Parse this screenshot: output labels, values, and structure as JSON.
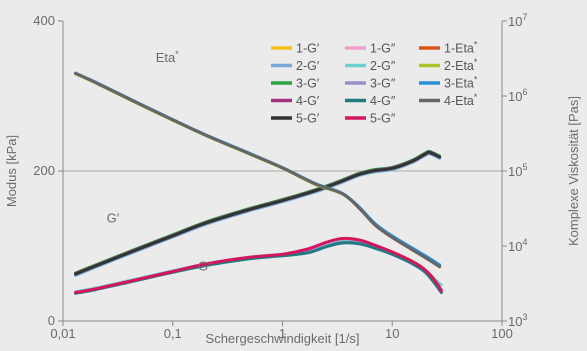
{
  "chart_data": {
    "type": "line",
    "xlabel": "Schergeschwindigkeit [1/s]",
    "ylabel_left": "Modus [kPa]",
    "ylabel_right": "Komplexe Viskosität [Pas]",
    "x_scale": "log",
    "xlim": [
      0.01,
      100
    ],
    "x_ticks": [
      {
        "v": 0.01,
        "label": "0,01"
      },
      {
        "v": 0.1,
        "label": "0,1"
      },
      {
        "v": 1,
        "label": "1"
      },
      {
        "v": 10,
        "label": "10"
      },
      {
        "v": 100,
        "label": "100"
      }
    ],
    "ylim_left": [
      0,
      400
    ],
    "y_ticks_left": [
      {
        "v": 0,
        "label": "0"
      },
      {
        "v": 200,
        "label": "200"
      },
      {
        "v": 400,
        "label": "400"
      }
    ],
    "y_scale_right": "log",
    "ylim_right": [
      1000,
      10000000
    ],
    "y_ticks_right": [
      {
        "v": 1000,
        "base": "10",
        "exp": "3"
      },
      {
        "v": 10000,
        "base": "10",
        "exp": "4"
      },
      {
        "v": 100000,
        "base": "10",
        "exp": "5"
      },
      {
        "v": 1000000,
        "base": "10",
        "exp": "6"
      },
      {
        "v": 10000000,
        "base": "10",
        "exp": "7"
      }
    ],
    "grid": "horizontal line at 200",
    "legend_position": "top-right",
    "annotations": [
      {
        "text": "Eta*",
        "x": 0.07,
        "y": 352
      },
      {
        "text": "G′",
        "x": 0.025,
        "y": 138
      },
      {
        "text": "G″",
        "x": 0.17,
        "y": 74
      }
    ],
    "series": [
      {
        "name": "1-G′",
        "group": "G′",
        "color": "#f2c21b",
        "axis": "left",
        "x": [
          0.013,
          0.02,
          0.05,
          0.1,
          0.2,
          0.5,
          1,
          1.7,
          2.5,
          3.5,
          5,
          7,
          10,
          15,
          20,
          22,
          27
        ],
        "y": [
          62,
          73,
          96,
          113,
          130,
          148,
          160,
          170,
          178,
          186,
          195,
          200,
          203,
          212,
          222,
          224,
          218
        ]
      },
      {
        "name": "2-G′",
        "group": "G′",
        "color": "#7aa8d6",
        "axis": "left",
        "x": [
          0.013,
          0.02,
          0.05,
          0.1,
          0.2,
          0.5,
          1,
          1.7,
          2.5,
          3.5,
          5,
          7,
          10,
          15,
          20,
          22,
          27
        ],
        "y": [
          61,
          72,
          95,
          112,
          129,
          147,
          159,
          169,
          177,
          185,
          194,
          199,
          202,
          211,
          221,
          223,
          217
        ]
      },
      {
        "name": "3-G′",
        "group": "G′",
        "color": "#2ea043",
        "axis": "left",
        "x": [
          0.013,
          0.02,
          0.05,
          0.1,
          0.2,
          0.5,
          1,
          1.7,
          2.5,
          3.5,
          5,
          7,
          10,
          15,
          20,
          22,
          27
        ],
        "y": [
          64,
          75,
          98,
          115,
          132,
          150,
          162,
          172,
          180,
          188,
          197,
          202,
          205,
          214,
          224,
          226,
          220
        ]
      },
      {
        "name": "4-G′",
        "group": "G′",
        "color": "#a0317c",
        "axis": "left",
        "x": [
          0.013,
          0.02,
          0.05,
          0.1,
          0.2,
          0.5,
          1,
          1.7,
          2.5,
          3.5,
          5,
          7,
          10,
          15,
          20,
          22,
          27
        ],
        "y": [
          63,
          74,
          97,
          114,
          131,
          149,
          161,
          171,
          179,
          187,
          196,
          201,
          204,
          213,
          223,
          225,
          219
        ]
      },
      {
        "name": "5-G′",
        "group": "G′",
        "color": "#333333",
        "axis": "left",
        "x": [
          0.013,
          0.02,
          0.05,
          0.1,
          0.2,
          0.5,
          1,
          1.7,
          2.5,
          3.5,
          5,
          7,
          10,
          15,
          20,
          22,
          27
        ],
        "y": [
          62.5,
          73.5,
          96.5,
          113.5,
          130.5,
          148.5,
          160.5,
          170.5,
          178.5,
          186.5,
          195.5,
          200.5,
          203.5,
          212.5,
          222.5,
          224.5,
          218.5
        ]
      },
      {
        "name": "1-G″",
        "group": "G″",
        "color": "#f29ccf",
        "axis": "left",
        "x": [
          0.013,
          0.02,
          0.05,
          0.1,
          0.2,
          0.5,
          1,
          1.7,
          2.5,
          3.5,
          5,
          7,
          10,
          15,
          20,
          25,
          28
        ],
        "y": [
          38,
          43,
          56,
          66,
          75,
          84,
          88,
          92,
          100,
          105,
          104,
          98,
          90,
          78,
          66,
          50,
          42
        ]
      },
      {
        "name": "2-G″",
        "group": "G″",
        "color": "#6fd0d0",
        "axis": "left",
        "x": [
          0.013,
          0.02,
          0.05,
          0.1,
          0.2,
          0.5,
          1,
          1.7,
          2.5,
          3.5,
          5,
          7,
          10,
          15,
          20,
          25,
          28
        ],
        "y": [
          39,
          44,
          57,
          67,
          76,
          85,
          89,
          93,
          101,
          106,
          105,
          99,
          91,
          79,
          68,
          54,
          48
        ]
      },
      {
        "name": "3-G″",
        "group": "G″",
        "color": "#9b8ec9",
        "axis": "left",
        "x": [
          0.013,
          0.02,
          0.05,
          0.1,
          0.2,
          0.5,
          1,
          1.7,
          2.5,
          3.5,
          5,
          7,
          10,
          15,
          20,
          25,
          28
        ],
        "y": [
          38,
          43,
          56,
          66,
          75,
          84,
          88,
          92,
          100,
          105,
          104,
          98,
          90,
          78,
          66,
          50,
          42
        ]
      },
      {
        "name": "4-G″",
        "group": "G″",
        "color": "#1f7a82",
        "axis": "left",
        "x": [
          0.013,
          0.02,
          0.05,
          0.1,
          0.2,
          0.5,
          1,
          1.7,
          2.5,
          3.5,
          5,
          7,
          10,
          15,
          20,
          25,
          28
        ],
        "y": [
          37,
          42,
          55,
          65,
          74,
          83,
          87,
          91,
          99,
          104,
          103,
          97,
          89,
          77,
          65,
          48,
          38
        ]
      },
      {
        "name": "5-G″",
        "group": "G″",
        "color": "#d6155c",
        "axis": "left",
        "x": [
          0.013,
          0.02,
          0.05,
          0.1,
          0.2,
          0.5,
          1,
          1.7,
          2.5,
          3.5,
          5,
          7,
          10,
          15,
          20,
          25,
          28
        ],
        "y": [
          38,
          43,
          56,
          66,
          76,
          85,
          89,
          96,
          105,
          110,
          108,
          101,
          92,
          80,
          68,
          52,
          40
        ]
      },
      {
        "name": "1-Eta*",
        "group": "Eta*",
        "color": "#e0521c",
        "axis": "right",
        "x": [
          0.013,
          0.02,
          0.05,
          0.1,
          0.2,
          0.5,
          1,
          2,
          3.5,
          5,
          7,
          10,
          20,
          27
        ],
        "y": [
          2000000,
          1500000,
          780000,
          480000,
          300000,
          170000,
          110000,
          67000,
          50000,
          32000,
          19000,
          13000,
          7000,
          5300
        ]
      },
      {
        "name": "2-Eta*",
        "group": "Eta*",
        "color": "#a8c52c",
        "axis": "right",
        "x": [
          0.013,
          0.02,
          0.05,
          0.1,
          0.2,
          0.5,
          1,
          2,
          3.5,
          5,
          7,
          10,
          20,
          27
        ],
        "y": [
          1980000,
          1480000,
          770000,
          475000,
          297000,
          168000,
          109000,
          66000,
          49500,
          32500,
          19500,
          13300,
          7200,
          5500
        ]
      },
      {
        "name": "3-Eta*",
        "group": "Eta*",
        "color": "#2c8fd6",
        "axis": "right",
        "x": [
          0.013,
          0.02,
          0.05,
          0.1,
          0.2,
          0.5,
          1,
          2,
          3.5,
          5,
          7,
          10,
          20,
          27
        ],
        "y": [
          2020000,
          1520000,
          790000,
          485000,
          303000,
          172000,
          111000,
          68000,
          50500,
          33000,
          19800,
          13600,
          7400,
          5600
        ]
      },
      {
        "name": "4-Eta*",
        "group": "Eta*",
        "color": "#666666",
        "axis": "right",
        "x": [
          0.013,
          0.02,
          0.05,
          0.1,
          0.2,
          0.5,
          1,
          2,
          3.5,
          5,
          7,
          10,
          20,
          27
        ],
        "y": [
          2000000,
          1500000,
          780000,
          480000,
          300000,
          170000,
          110000,
          67000,
          50000,
          32000,
          19000,
          13000,
          7000,
          5300
        ]
      }
    ]
  }
}
